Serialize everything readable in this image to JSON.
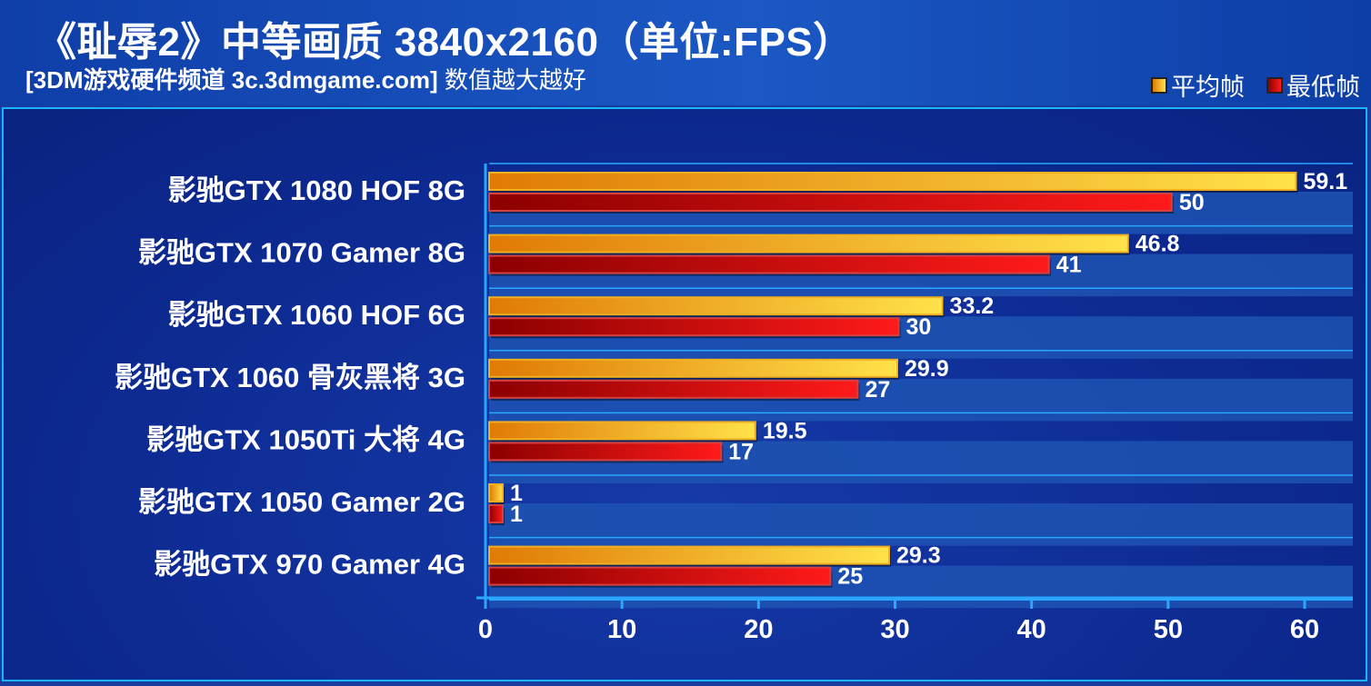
{
  "header": {
    "title": "《耻辱2》中等画质 3840x2160（单位:FPS）",
    "subtitle_bold": "[3DM游戏硬件频道 3c.3dmgame.com]",
    "subtitle_rest": " 数值越大越好"
  },
  "legend": {
    "avg_label": "平均帧",
    "min_label": "最低帧"
  },
  "colors": {
    "avg_light": "#ffe24a",
    "avg_dark": "#e07a06",
    "min_light": "#ff1a1a",
    "min_dark": "#8c0000",
    "grid": "#29a7ff",
    "band": "#1d54b3"
  },
  "chart_data": {
    "type": "bar",
    "orientation": "horizontal",
    "categories": [
      "影驰GTX 1080 HOF 8G",
      "影驰GTX 1070 Gamer 8G",
      "影驰GTX 1060 HOF 6G",
      "影驰GTX 1060 骨灰黑将 3G",
      "影驰GTX 1050Ti 大将 4G",
      "影驰GTX 1050 Gamer 2G",
      "影驰GTX 970 Gamer 4G"
    ],
    "series": [
      {
        "name": "平均帧",
        "values": [
          59.1,
          46.8,
          33.2,
          29.9,
          19.5,
          1,
          29.3
        ]
      },
      {
        "name": "最低帧",
        "values": [
          50,
          41,
          30,
          27,
          17,
          1,
          25
        ]
      }
    ],
    "value_labels": [
      [
        "59.1",
        "46.8",
        "33.2",
        "29.9",
        "19.5",
        "1",
        "29.3"
      ],
      [
        "50",
        "41",
        "30",
        "27",
        "17",
        "1",
        "25"
      ]
    ],
    "xlim": [
      0,
      60
    ],
    "xticks": [
      "0",
      "10",
      "20",
      "30",
      "40",
      "50",
      "60"
    ],
    "grid": true,
    "legend_position": "top-right"
  }
}
